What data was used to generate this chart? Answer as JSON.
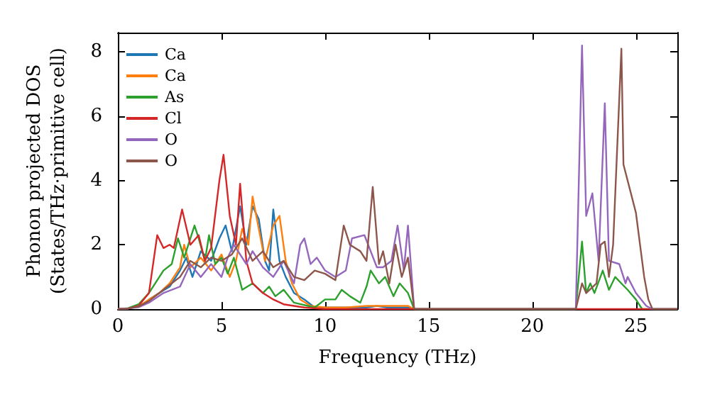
{
  "chart_data": {
    "type": "line",
    "xlabel": "Frequency (THz)",
    "ylabel": "Phonon projected DOS\n(States/THz·primitive cell)",
    "xlim": [
      0,
      27
    ],
    "ylim": [
      0,
      8.6
    ],
    "xticks": [
      0,
      5,
      10,
      15,
      20,
      25
    ],
    "yticks": [
      0,
      2,
      4,
      6,
      8
    ],
    "grid": false,
    "legend": "top left",
    "marker": "none",
    "line_style": "solid",
    "series": [
      {
        "name": "Ca",
        "color": "#1f77b4",
        "x": [
          1.5,
          2,
          2.5,
          3,
          3.3,
          3.6,
          4,
          4.5,
          4.9,
          5.2,
          5.5,
          5.9,
          6.2,
          6.5,
          6.8,
          7.1,
          7.3,
          7.5,
          7.8,
          8.1,
          8.5,
          9,
          9.5,
          10,
          11,
          12,
          12.5,
          13,
          14,
          14.3,
          22.1
        ],
        "values": [
          0.3,
          0.5,
          0.7,
          1.2,
          1.6,
          1.0,
          1.8,
          1.5,
          2.2,
          2.6,
          1.8,
          3.2,
          2.0,
          3.2,
          2.8,
          1.5,
          1.2,
          3.1,
          1.5,
          1.0,
          0.5,
          0.3,
          0.05,
          0.05,
          0.05,
          0.05,
          0.1,
          0.05,
          0.05,
          0,
          0
        ]
      },
      {
        "name": "Ca",
        "color": "#ff7f0e",
        "x": [
          0,
          0.5,
          1,
          1.5,
          2,
          2.5,
          3,
          3.2,
          3.5,
          4,
          4.5,
          5,
          5.4,
          5.7,
          6,
          6.3,
          6.5,
          6.8,
          7.1,
          7.5,
          7.8,
          8.1,
          8.4,
          8.8,
          9.3,
          10,
          11,
          12,
          12.5,
          13,
          14,
          14.3,
          22.1
        ],
        "values": [
          0,
          0.02,
          0.08,
          0.3,
          0.5,
          0.8,
          1.3,
          2.0,
          1.3,
          1.6,
          1.2,
          1.7,
          1.0,
          1.5,
          2.5,
          2.0,
          3.5,
          2.5,
          1.5,
          2.6,
          2.9,
          1.5,
          0.8,
          0.3,
          0.1,
          0.05,
          0.05,
          0.1,
          0.1,
          0.1,
          0.1,
          0,
          0
        ]
      },
      {
        "name": "As",
        "color": "#2ca02c",
        "x": [
          0,
          0.5,
          1,
          1.5,
          2.2,
          2.6,
          2.9,
          3.2,
          3.7,
          3.9,
          4.2,
          4.4,
          4.7,
          5,
          5.3,
          5.6,
          6,
          6.5,
          7,
          7.3,
          7.6,
          8,
          8.5,
          9.5,
          10,
          10.5,
          10.8,
          11.2,
          11.7,
          12,
          12.2,
          12.6,
          12.9,
          13.3,
          13.6,
          14,
          14.3,
          22.1,
          22.4,
          22.6,
          22.8,
          23,
          23.4,
          23.7,
          24,
          24.3,
          24.6,
          25,
          25.3,
          26,
          27
        ],
        "values": [
          0,
          0.03,
          0.15,
          0.5,
          1.2,
          1.4,
          2.2,
          1.6,
          2.6,
          2.2,
          1.5,
          2.3,
          1.4,
          1.6,
          1.1,
          1.6,
          0.6,
          0.8,
          0.5,
          0.7,
          0.4,
          0.6,
          0.2,
          0.05,
          0.3,
          0.3,
          0.6,
          0.4,
          0.2,
          0.7,
          1.2,
          0.8,
          1.0,
          0.4,
          0.8,
          0.5,
          0,
          0,
          2.1,
          0.5,
          0.8,
          0.5,
          1.2,
          0.6,
          1.0,
          0.8,
          0.6,
          0.3,
          0,
          0,
          0
        ]
      },
      {
        "name": "Cl",
        "color": "#d62728",
        "x": [
          0,
          0.5,
          1,
          1.5,
          1.9,
          2.2,
          2.5,
          2.7,
          3.1,
          3.5,
          3.9,
          4.2,
          4.5,
          4.9,
          5.1,
          5.4,
          5.7,
          5.9,
          6.2,
          6.5,
          7,
          7.5,
          8,
          9,
          10,
          14.3,
          22.1,
          26,
          27
        ],
        "values": [
          0,
          0.02,
          0.1,
          0.5,
          2.3,
          1.9,
          2.0,
          1.9,
          3.1,
          2.0,
          2.3,
          1.5,
          1.9,
          4.0,
          4.8,
          2.9,
          2.0,
          3.9,
          1.5,
          0.8,
          0.5,
          0.3,
          0.15,
          0.05,
          0,
          0,
          0,
          0,
          0
        ]
      },
      {
        "name": "O",
        "color": "#9467bd",
        "x": [
          0,
          0.5,
          1,
          1.5,
          2.2,
          3,
          3.5,
          4,
          4.5,
          5,
          5.3,
          5.6,
          6.2,
          6.5,
          7,
          7.5,
          8,
          8.5,
          8.8,
          9,
          9.3,
          9.6,
          10,
          10.5,
          11,
          11.3,
          11.9,
          12.2,
          12.5,
          12.8,
          13.2,
          13.5,
          13.8,
          14,
          14.3,
          22.1,
          22.4,
          22.6,
          22.9,
          23.2,
          23.5,
          23.7,
          24.2,
          24.5,
          24.6,
          25,
          25.5,
          25.8,
          27
        ],
        "values": [
          0,
          0.02,
          0.06,
          0.2,
          0.5,
          0.7,
          1.4,
          1.0,
          1.4,
          1.0,
          1.6,
          2.0,
          1.4,
          1.8,
          1.3,
          1.0,
          1.5,
          0.8,
          2.0,
          2.2,
          1.4,
          1.6,
          1.2,
          1.0,
          1.2,
          2.2,
          2.3,
          1.8,
          1.3,
          1.3,
          1.5,
          2.6,
          1.2,
          2.6,
          0,
          0,
          8.2,
          2.9,
          3.6,
          1.5,
          6.4,
          1.5,
          1.4,
          0.8,
          1.0,
          0.5,
          0.1,
          0,
          0
        ]
      },
      {
        "name": "O",
        "color": "#8c564b",
        "x": [
          0,
          0.5,
          1,
          1.5,
          2.2,
          3,
          3.5,
          4,
          4.5,
          5,
          5.5,
          6,
          6.5,
          7,
          7.5,
          8,
          8.5,
          9,
          9.5,
          10,
          10.5,
          10.9,
          11.2,
          11.7,
          12,
          12.3,
          12.6,
          12.8,
          13.1,
          13.4,
          13.7,
          14,
          14.3,
          22.1,
          22.4,
          22.6,
          23.1,
          23.3,
          23.5,
          23.7,
          23.9,
          24.3,
          24.4,
          25,
          25.4,
          25.6,
          25.8,
          27
        ],
        "values": [
          0,
          0.02,
          0.08,
          0.25,
          0.6,
          1.0,
          1.5,
          1.3,
          1.6,
          1.5,
          1.7,
          2.2,
          1.5,
          1.8,
          1.3,
          1.5,
          1.0,
          0.9,
          1.2,
          1.1,
          0.9,
          2.6,
          2.0,
          1.8,
          1.5,
          3.8,
          1.4,
          1.8,
          0.8,
          2.0,
          1.0,
          1.6,
          0,
          0,
          0.8,
          0.5,
          0.8,
          2.0,
          2.1,
          1.0,
          2.0,
          8.1,
          4.5,
          3.0,
          1.0,
          0.3,
          0,
          0
        ]
      }
    ]
  }
}
